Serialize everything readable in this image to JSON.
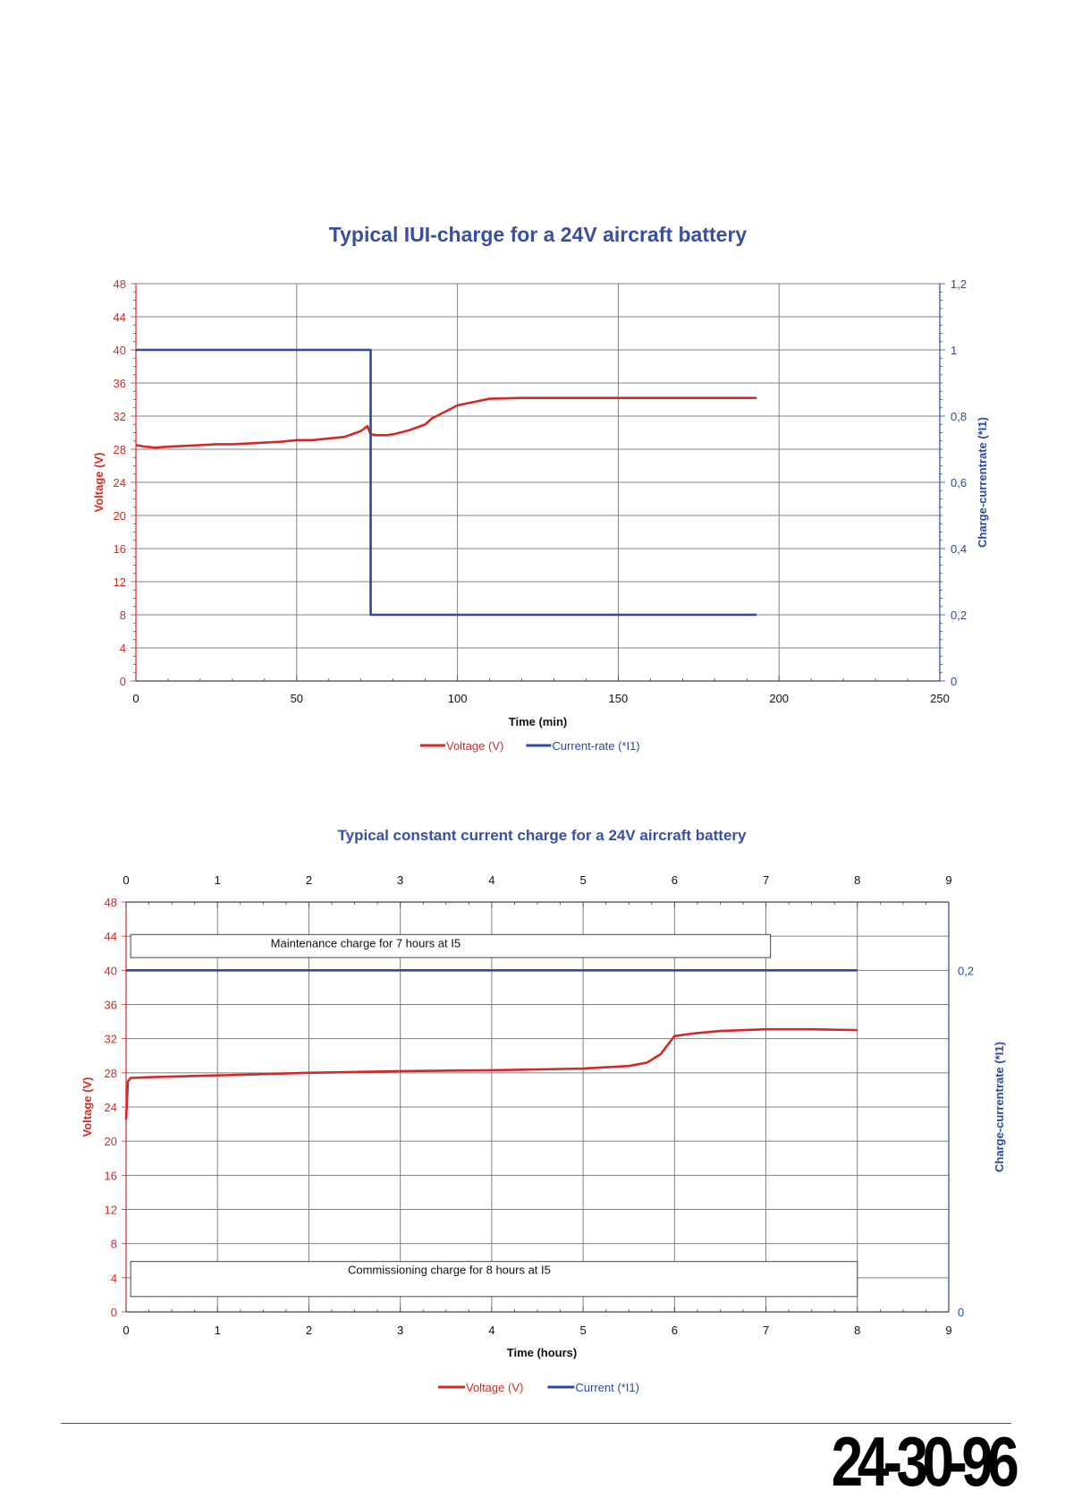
{
  "charts": [
    {
      "id": "chart1",
      "type": "line",
      "title": "Typical IUI-charge for a 24V aircraft battery",
      "xlabel": "Time (min)",
      "ylabel_left": "Voltage (V)",
      "ylabel_right": "Charge-currentrate (*I1)",
      "xlim": [
        0,
        250
      ],
      "x_ticks": [
        0,
        50,
        100,
        150,
        200,
        250
      ],
      "ylim_left": [
        0,
        48
      ],
      "y_ticks_left": [
        0,
        4,
        8,
        12,
        16,
        20,
        24,
        28,
        32,
        36,
        40,
        44,
        48
      ],
      "ylim_right": [
        0,
        1.2
      ],
      "y_ticks_right": [
        "0",
        "0,2",
        "0,4",
        "0,6",
        "0,8",
        "1",
        "1,2"
      ],
      "grid": true,
      "legend": "bottom",
      "legend_entries": [
        "Voltage (V)",
        "Current-rate (*I1)"
      ],
      "series": [
        {
          "name": "Voltage (V)",
          "axis": "left",
          "color": "#d42a25",
          "x": [
            0,
            3,
            6,
            10,
            15,
            20,
            25,
            30,
            35,
            40,
            45,
            50,
            55,
            60,
            65,
            70,
            72,
            73,
            75,
            78,
            80,
            85,
            90,
            92,
            95,
            98,
            100,
            105,
            110,
            120,
            140,
            160,
            180,
            193
          ],
          "y": [
            28.5,
            28.3,
            28.2,
            28.3,
            28.4,
            28.5,
            28.6,
            28.6,
            28.7,
            28.8,
            28.9,
            29.1,
            29.1,
            29.3,
            29.5,
            30.2,
            30.8,
            29.8,
            29.7,
            29.7,
            29.8,
            30.3,
            31.0,
            31.7,
            32.3,
            32.9,
            33.3,
            33.7,
            34.1,
            34.2,
            34.2,
            34.2,
            34.2,
            34.2
          ]
        },
        {
          "name": "Current-rate (*I1)",
          "axis": "right",
          "color": "#2b4aa0",
          "x": [
            0,
            73,
            73,
            193
          ],
          "y": [
            1.0,
            1.0,
            0.2,
            0.2
          ]
        }
      ]
    },
    {
      "id": "chart2",
      "type": "line",
      "title": "Typical constant current charge for a 24V aircraft battery",
      "xlabel": "Time (hours)",
      "ylabel_left": "Voltage (V)",
      "ylabel_right": "Charge-currentrate (*I1)",
      "xlim": [
        0,
        9
      ],
      "x_ticks": [
        0,
        1,
        2,
        3,
        4,
        5,
        6,
        7,
        8,
        9
      ],
      "x_ticks_top": [
        0,
        1,
        2,
        3,
        4,
        5,
        6,
        7,
        8,
        9
      ],
      "ylim_left": [
        0,
        48
      ],
      "y_ticks_left": [
        0,
        4,
        8,
        12,
        16,
        20,
        24,
        28,
        32,
        36,
        40,
        44,
        48
      ],
      "ylim_right": [
        0,
        0.24
      ],
      "y_ticks_right": [
        {
          "value": 0,
          "label": "0"
        },
        {
          "value": 0.2,
          "label": "0,2"
        }
      ],
      "grid": true,
      "legend": "bottom",
      "legend_entries": [
        "Voltage (V)",
        "Current (*I1)"
      ],
      "annotations": [
        {
          "text": "Maintenance charge for 7 hours at I5",
          "x0": 0.05,
          "x1": 7.05,
          "y0": 41.5,
          "y1": 44.2
        },
        {
          "text": "Commissioning charge for 8 hours at I5",
          "x0": 0.05,
          "x1": 8.0,
          "y0": 1.8,
          "y1": 5.9
        }
      ],
      "series": [
        {
          "name": "Voltage (V)",
          "axis": "left",
          "color": "#d42a25",
          "x": [
            0,
            0.02,
            0.05,
            0.3,
            1,
            2,
            3,
            4,
            5,
            5.5,
            5.7,
            5.85,
            5.92,
            6.0,
            6.2,
            6.5,
            7,
            7.5,
            8
          ],
          "y": [
            22.5,
            27.0,
            27.4,
            27.5,
            27.7,
            28.0,
            28.2,
            28.3,
            28.5,
            28.8,
            29.2,
            30.2,
            31.2,
            32.3,
            32.6,
            32.9,
            33.1,
            33.1,
            33.0
          ]
        },
        {
          "name": "Current (*I1)",
          "axis": "right",
          "color": "#2b4aa0",
          "x": [
            0,
            8
          ],
          "y": [
            0.2,
            0.2
          ]
        }
      ]
    }
  ],
  "footer": {
    "doc_number": "24-30-96"
  }
}
